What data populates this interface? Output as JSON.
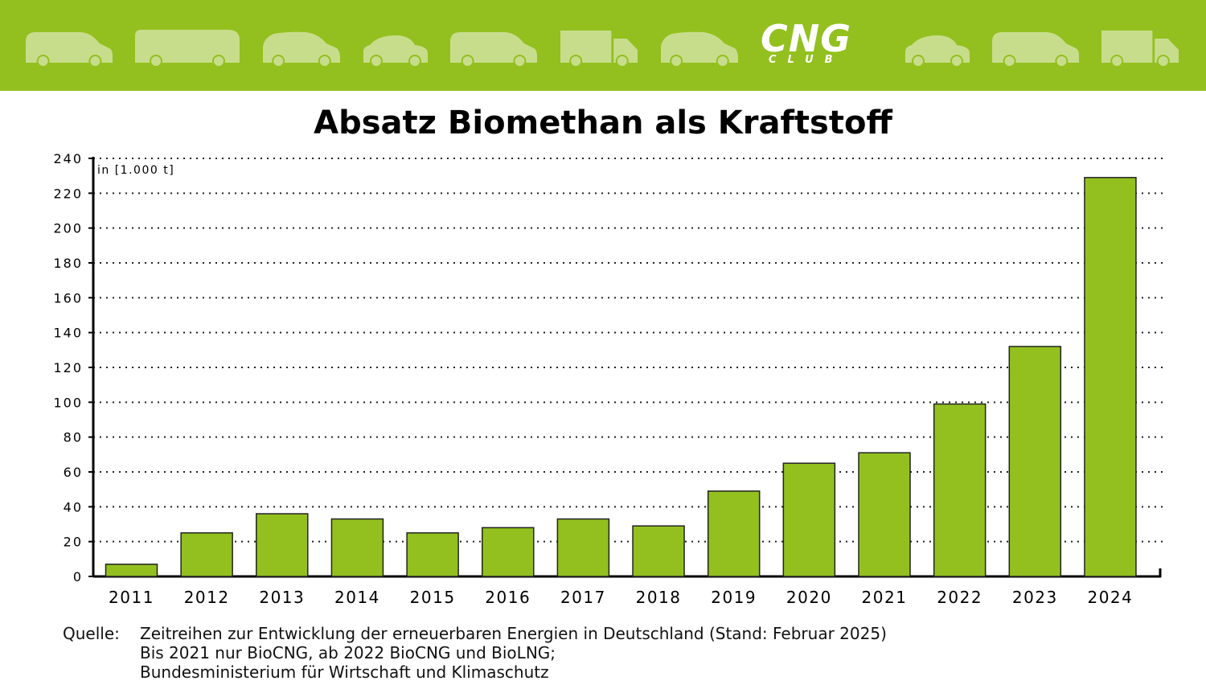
{
  "header": {
    "background": "#93c01f",
    "vehicle_color": "#c8dd8c",
    "vehicle_icons": [
      "van-icon",
      "motorhome-icon",
      "minivan-icon",
      "hatchback-icon",
      "van-icon",
      "truck-icon",
      "minivan-icon",
      "hatchback-icon",
      "van-icon",
      "truck-icon"
    ],
    "logo_main": "CNG",
    "logo_sub": "CLUB"
  },
  "chart_data": {
    "type": "bar",
    "title": "Absatz Biomethan als Kraftstoff",
    "unit_label": "in [1.000 t]",
    "xlabel": "",
    "ylabel": "",
    "categories": [
      "2011",
      "2012",
      "2013",
      "2014",
      "2015",
      "2016",
      "2017",
      "2018",
      "2019",
      "2020",
      "2021",
      "2022",
      "2023",
      "2024"
    ],
    "values": [
      7,
      25,
      36,
      33,
      25,
      28,
      33,
      29,
      49,
      65,
      71,
      99,
      132,
      229
    ],
    "ylim": [
      0,
      240
    ],
    "yticks": [
      0,
      20,
      40,
      60,
      80,
      100,
      120,
      140,
      160,
      180,
      200,
      220,
      240
    ],
    "grid": true,
    "bar_color": "#93c01f",
    "bar_edge_color": "#222222"
  },
  "source": {
    "label": "Quelle:",
    "lines": [
      "Zeitreihen zur Entwicklung der erneuerbaren Energien in Deutschland (Stand: Februar 2025)",
      "Bis 2021 nur BioCNG, ab 2022 BioCNG und BioLNG;",
      "Bundesministerium für Wirtschaft und Klimaschutz"
    ]
  }
}
